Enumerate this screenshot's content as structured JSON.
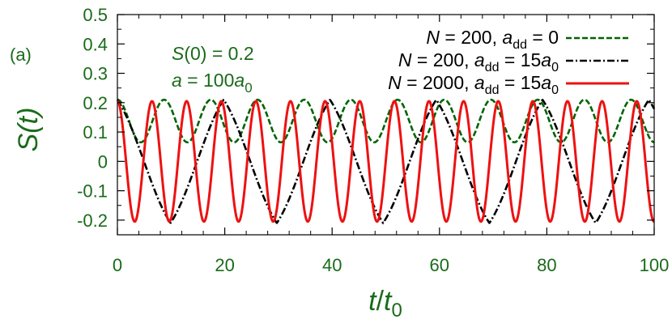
{
  "chart_data": {
    "type": "line",
    "panel_label": "(a)",
    "xlabel": {
      "main": "t",
      "sep": "/",
      "main2": "t",
      "sub": "0"
    },
    "ylabel": {
      "main": "S",
      "arg": "(t)"
    },
    "xlim": [
      0,
      100
    ],
    "ylim": [
      -0.25,
      0.5
    ],
    "x_ticks": [
      0,
      20,
      40,
      60,
      80,
      100
    ],
    "x_tick_labels": [
      "0",
      "20",
      "40",
      "60",
      "80",
      "100"
    ],
    "y_ticks": [
      0.5,
      0.4,
      0.3,
      0.2,
      0.1,
      0,
      -0.1,
      -0.2
    ],
    "y_tick_labels": [
      "0.5",
      "0.4",
      "0.3",
      "0.2",
      "0.1",
      "0",
      "-0.1",
      "-0.2"
    ],
    "grid": false,
    "legend_position": "top-right",
    "annotations": {
      "line1": {
        "italic": "S",
        "rest": "(0) = 0.2"
      },
      "line2": {
        "italic": "a",
        "rest": " = 100",
        "italic2": "a",
        "sub": "0"
      }
    },
    "series": [
      {
        "name": "N = 200, a_dd = 0",
        "legend": {
          "n_italic": "N",
          "n_rest": " = 200, ",
          "a_italic": "a",
          "a_sub": "dd",
          "a_rest": " = 0"
        },
        "color": "#006400",
        "dash": "dashed",
        "period": 8.7,
        "min": 0.065,
        "max": 0.21,
        "shape": "sinusoid"
      },
      {
        "name": "N = 200, a_dd = 15a_0",
        "legend": {
          "n_italic": "N",
          "n_rest": " = 200, ",
          "a_italic": "a",
          "a_sub": "dd",
          "a_rest": " = 15",
          "a2_italic": "a",
          "a2_sub": "0"
        },
        "color": "#000000",
        "dash": "dash-dot",
        "period": 19.8,
        "min": -0.21,
        "max": 0.21,
        "shape": "triangular"
      },
      {
        "name": "N = 2000, a_dd = 15a_0",
        "legend": {
          "n_italic": "N",
          "n_rest": " = 2000, ",
          "a_italic": "a",
          "a_sub": "dd",
          "a_rest": " = 15",
          "a2_italic": "a",
          "a2_sub": "0"
        },
        "color": "#ee1111",
        "dash": "solid",
        "period": 6.45,
        "min": -0.205,
        "max": 0.205,
        "shape": "cosine"
      }
    ]
  }
}
